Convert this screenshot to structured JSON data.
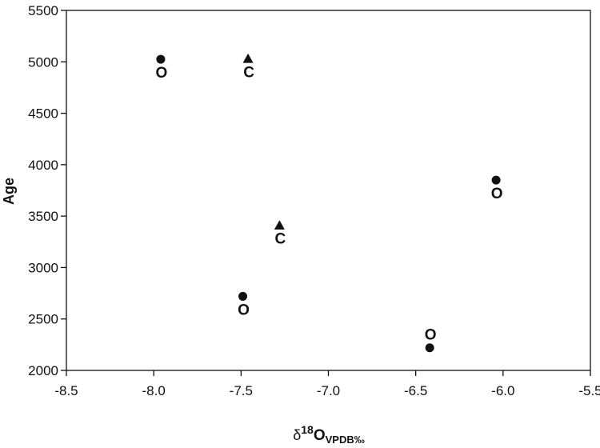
{
  "chart_data": {
    "type": "scatter",
    "title": "",
    "xlabel": {
      "prefix": "δ",
      "sup": "18",
      "main": "O",
      "sub": "VPDB‰"
    },
    "ylabel": "Age",
    "xlim": [
      -8.5,
      -5.5
    ],
    "ylim": [
      2000,
      5500
    ],
    "x_ticks": [
      -8.5,
      -8.0,
      -7.5,
      -7.0,
      -6.5,
      -6.0,
      -5.5
    ],
    "x_tick_labels": [
      "-8.5",
      "-8.0",
      "-7.5",
      "-7.0",
      "-6.5",
      "-6.0",
      "-5.5"
    ],
    "y_ticks": [
      2000,
      2500,
      3000,
      3500,
      4000,
      4500,
      5000,
      5500
    ],
    "y_tick_labels": [
      "2000",
      "2500",
      "3000",
      "3500",
      "4000",
      "4500",
      "5000",
      "5500"
    ],
    "grid": false,
    "legend": "none",
    "points": [
      {
        "x": -7.96,
        "y": 5025,
        "marker": "circle",
        "label": "O",
        "label_pos": "below"
      },
      {
        "x": -7.46,
        "y": 5030,
        "marker": "triangle",
        "label": "C",
        "label_pos": "below"
      },
      {
        "x": -7.28,
        "y": 3410,
        "marker": "triangle",
        "label": "C",
        "label_pos": "below"
      },
      {
        "x": -7.49,
        "y": 2720,
        "marker": "circle",
        "label": "O",
        "label_pos": "below"
      },
      {
        "x": -6.42,
        "y": 2220,
        "marker": "circle",
        "label": "O",
        "label_pos": "above"
      },
      {
        "x": -6.04,
        "y": 3850,
        "marker": "circle",
        "label": "O",
        "label_pos": "below"
      }
    ],
    "colors": {
      "marker": "#111111",
      "axis": "#111111"
    }
  }
}
